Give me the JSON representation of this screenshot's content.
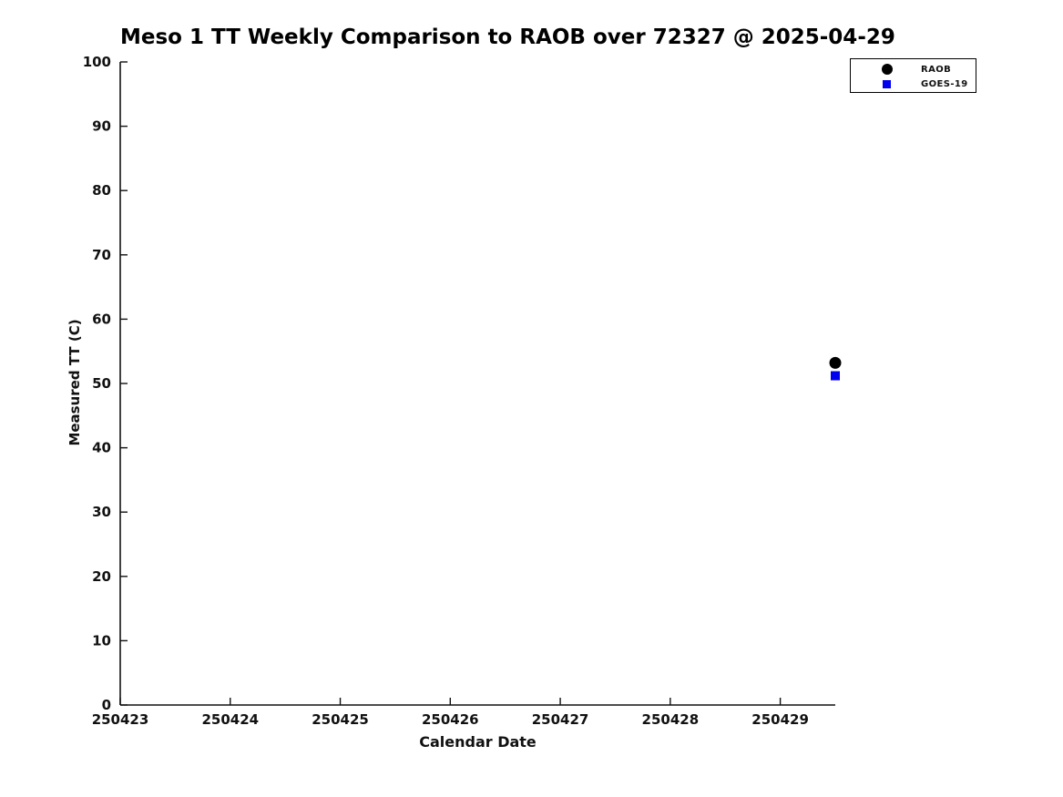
{
  "colors": {
    "background": "#ffffff",
    "text": "#111111",
    "axis": "#111111",
    "title": "#000000",
    "raob_marker": "#000000",
    "goes19_marker": "#0000ee"
  },
  "chart_data": {
    "type": "scatter",
    "title": "Meso 1 TT Weekly Comparison to RAOB over 72327 @ 2025-04-29",
    "xlabel": "Calendar Date",
    "ylabel": "Measured TT (C)",
    "xlim": [
      250423,
      250429.5
    ],
    "ylim": [
      0,
      100
    ],
    "x_ticks": [
      250423,
      250424,
      250425,
      250426,
      250427,
      250428,
      250429
    ],
    "y_ticks": [
      0,
      10,
      20,
      30,
      40,
      50,
      60,
      70,
      80,
      90,
      100
    ],
    "grid": false,
    "legend_position": "top-right",
    "series": [
      {
        "name": "RAOB",
        "marker": "circle",
        "color": "#000000",
        "points": [
          {
            "x": 250429.5,
            "y": 53.2
          }
        ]
      },
      {
        "name": "GOES-19",
        "marker": "square",
        "color": "#0000ee",
        "points": [
          {
            "x": 250429.5,
            "y": 51.2
          }
        ]
      }
    ]
  }
}
